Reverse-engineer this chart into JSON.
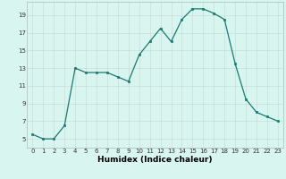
{
  "x": [
    0,
    1,
    2,
    3,
    4,
    5,
    6,
    7,
    8,
    9,
    10,
    11,
    12,
    13,
    14,
    15,
    16,
    17,
    18,
    19,
    20,
    21,
    22,
    23
  ],
  "y": [
    5.5,
    5.0,
    5.0,
    6.5,
    13.0,
    12.5,
    12.5,
    12.5,
    12.0,
    11.5,
    14.5,
    16.0,
    17.5,
    16.0,
    18.5,
    19.7,
    19.7,
    19.2,
    18.5,
    13.5,
    9.5,
    8.0,
    7.5,
    7.0
  ],
  "xlim": [
    -0.5,
    23.5
  ],
  "ylim": [
    4,
    20.5
  ],
  "xticks": [
    0,
    1,
    2,
    3,
    4,
    5,
    6,
    7,
    8,
    9,
    10,
    11,
    12,
    13,
    14,
    15,
    16,
    17,
    18,
    19,
    20,
    21,
    22,
    23
  ],
  "yticks": [
    5,
    7,
    9,
    11,
    13,
    15,
    17,
    19
  ],
  "xlabel": "Humidex (Indice chaleur)",
  "line_color": "#1a7a6e",
  "marker": "s",
  "marker_size": 1.8,
  "bg_color": "#d9f5f0",
  "grid_color": "#c8ddd9",
  "axis_color": "#aabbbb",
  "tick_fontsize": 5.0,
  "xlabel_fontsize": 6.5,
  "linewidth": 0.9
}
